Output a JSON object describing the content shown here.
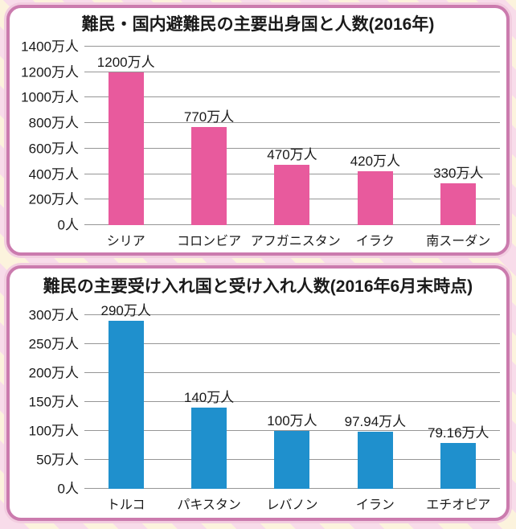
{
  "page": {
    "background_stripe_pink": "#f8dcea",
    "background_stripe_cream": "#fcf3dd",
    "card_border_color": "#cb7bae",
    "card_halo_color": "#f2cde0",
    "gridline_color": "#969696",
    "text_color": "#1a1a1a"
  },
  "chart_data": [
    {
      "type": "bar",
      "title": "難民・国内避難民の主要出身国と人数(2016年)",
      "categories": [
        "シリア",
        "コロンビア",
        "アフガニスタン",
        "イラク",
        "南スーダン"
      ],
      "values": [
        1200,
        770,
        470,
        420,
        330
      ],
      "value_labels": [
        "1200万人",
        "770万人",
        "470万人",
        "420万人",
        "330万人"
      ],
      "unit": "万人",
      "ylim": [
        0,
        1400
      ],
      "ytick_step": 200,
      "ytick_labels_top_to_bottom": [
        "1400万人",
        "1200万人",
        "1000万人",
        "800万人",
        "600万人",
        "400万人",
        "200万人",
        "0人"
      ],
      "bar_color": "#e85a9d",
      "grid": true,
      "legend_position": "none",
      "xlabel": "",
      "ylabel": ""
    },
    {
      "type": "bar",
      "title": "難民の主要受け入れ国と受け入れ人数(2016年6月末時点)",
      "categories": [
        "トルコ",
        "パキスタン",
        "レバノン",
        "イラン",
        "エチオピア"
      ],
      "values": [
        290,
        140,
        100,
        97.94,
        79.16
      ],
      "value_labels": [
        "290万人",
        "140万人",
        "100万人",
        "97.94万人",
        "79.16万人"
      ],
      "unit": "万人",
      "ylim": [
        0,
        300
      ],
      "ytick_step": 50,
      "ytick_labels_top_to_bottom": [
        "300万人",
        "250万人",
        "200万人",
        "150万人",
        "100万人",
        "50万人",
        "0人"
      ],
      "bar_color": "#1f90cd",
      "grid": true,
      "legend_position": "none",
      "xlabel": "",
      "ylabel": ""
    }
  ]
}
